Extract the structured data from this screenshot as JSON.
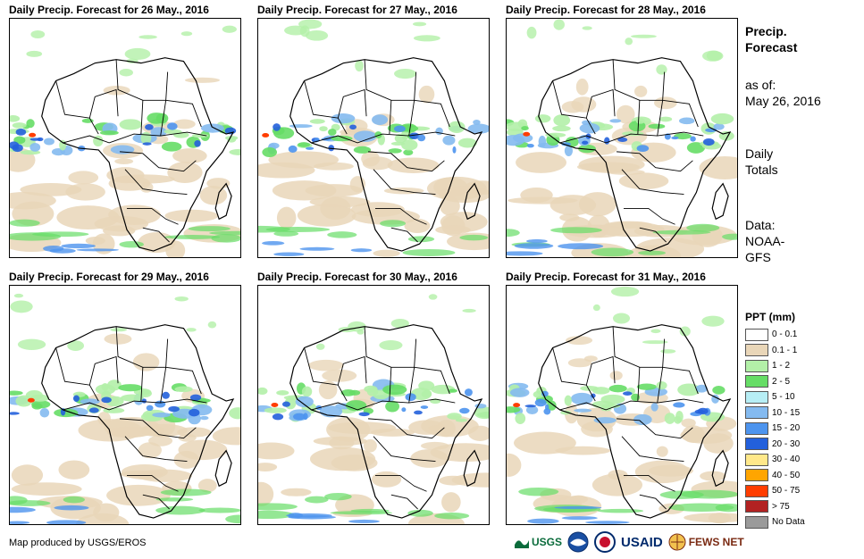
{
  "panels": [
    {
      "title": "Daily Precip. Forecast for 26 May., 2016",
      "seed": 11
    },
    {
      "title": "Daily Precip. Forecast for 27 May., 2016",
      "seed": 23
    },
    {
      "title": "Daily Precip. Forecast for 28 May., 2016",
      "seed": 37
    },
    {
      "title": "Daily Precip. Forecast for 29 May., 2016",
      "seed": 41
    },
    {
      "title": "Daily Precip. Forecast for 30 May., 2016",
      "seed": 53
    },
    {
      "title": "Daily Precip. Forecast for 31 May., 2016",
      "seed": 67
    }
  ],
  "side": {
    "heading_line1": "Precip.",
    "heading_line2": "Forecast",
    "asof_label": "as of:",
    "asof_date": "May 26, 2016",
    "totals_line1": "Daily",
    "totals_line2": "Totals",
    "data_line1": "Data:",
    "data_line2": "NOAA-",
    "data_line3": "GFS"
  },
  "legend": {
    "title": "PPT (mm)",
    "items": [
      {
        "label": "0 - 0.1",
        "color": "#ffffff"
      },
      {
        "label": "0.1 - 1",
        "color": "#e9d6b8"
      },
      {
        "label": "1 - 2",
        "color": "#b3f0a8"
      },
      {
        "label": "2 - 5",
        "color": "#66dd66"
      },
      {
        "label": "5 - 10",
        "color": "#b7eef5"
      },
      {
        "label": "10 - 15",
        "color": "#84baf0"
      },
      {
        "label": "15 - 20",
        "color": "#4d94ee"
      },
      {
        "label": "20 - 30",
        "color": "#2360dc"
      },
      {
        "label": "30 - 40",
        "color": "#ffe88a"
      },
      {
        "label": "40 - 50",
        "color": "#ffa500"
      },
      {
        "label": "50 - 75",
        "color": "#ff3d00"
      },
      {
        "label": "> 75",
        "color": "#b22222"
      },
      {
        "label": "No Data",
        "color": "#9a9a9a"
      }
    ]
  },
  "credit": "Map produced by USGS/EROS",
  "logos": {
    "usgs": "USGS",
    "usaid": "USAID",
    "fews": "FEWS NET"
  }
}
